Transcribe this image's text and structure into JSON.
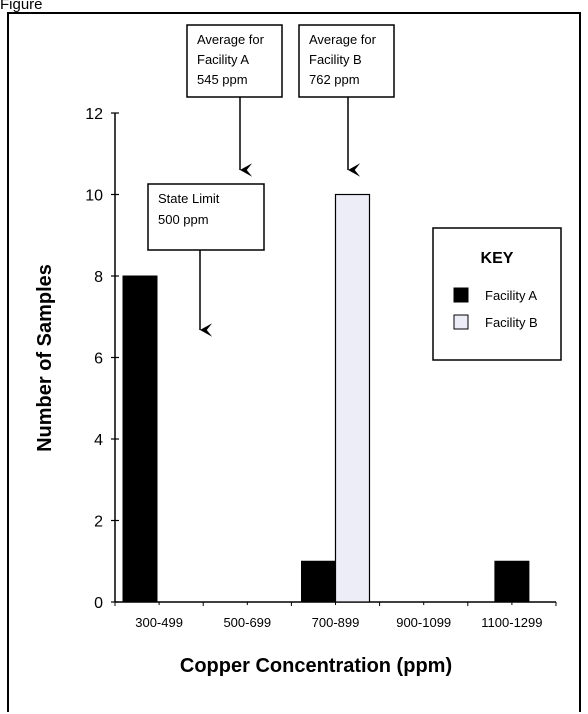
{
  "figure_label": "Figure",
  "chart_data": {
    "type": "bar",
    "categories": [
      "300-499",
      "500-699",
      "700-899",
      "900-1099",
      "1100-1299"
    ],
    "series": [
      {
        "name": "Facility A",
        "values": [
          8,
          0,
          1,
          0,
          1
        ],
        "color": "#000000"
      },
      {
        "name": "Facility B",
        "values": [
          0,
          0,
          10,
          0,
          0
        ],
        "color": "#ededf7"
      }
    ],
    "xlabel": "Copper   Concentration (ppm)",
    "ylabel": "Number of Samples",
    "ylim": [
      0,
      12
    ],
    "yticks": [
      0,
      2,
      4,
      6,
      8,
      10,
      12
    ],
    "grid": false,
    "legend": {
      "title": "KEY",
      "placement": "right"
    },
    "annotations": [
      {
        "id": "avg-a",
        "lines": [
          "Average for",
          "Facility A",
          "545 ppm"
        ],
        "points_to_category": "500-699"
      },
      {
        "id": "avg-b",
        "lines": [
          "Average for",
          "Facility B",
          "762 ppm"
        ],
        "points_to_category": "700-899"
      },
      {
        "id": "state-limit",
        "lines": [
          "State  Limit",
          "500 ppm"
        ],
        "points_to_category": "500-699"
      }
    ]
  }
}
